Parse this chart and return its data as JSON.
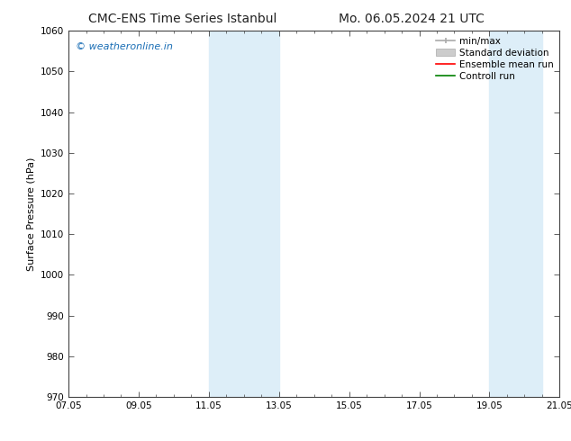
{
  "title": "CMC-ENS Time Series Istanbul",
  "title2": "Mo. 06.05.2024 21 UTC",
  "ylabel": "Surface Pressure (hPa)",
  "xlabel": "",
  "ylim": [
    970,
    1060
  ],
  "yticks": [
    970,
    980,
    990,
    1000,
    1010,
    1020,
    1030,
    1040,
    1050,
    1060
  ],
  "xtick_labels": [
    "07.05",
    "09.05",
    "11.05",
    "13.05",
    "15.05",
    "17.05",
    "19.05",
    "21.05"
  ],
  "xtick_positions": [
    0,
    2,
    4,
    6,
    8,
    10,
    12,
    14
  ],
  "x_min": 0,
  "x_max": 14,
  "shaded_bands": [
    {
      "x_start": 4,
      "x_end": 6
    },
    {
      "x_start": 12,
      "x_end": 13.5
    }
  ],
  "band_color": "#ddeef8",
  "watermark_text": "© weatheronline.in",
  "watermark_color": "#1a6eb5",
  "legend_labels": [
    "min/max",
    "Standard deviation",
    "Ensemble mean run",
    "Controll run"
  ],
  "legend_colors": [
    "#aaaaaa",
    "#cccccc",
    "red",
    "green"
  ],
  "bg_color": "#ffffff",
  "axes_bg_color": "#ffffff",
  "spine_color": "#444444",
  "title_fontsize": 10,
  "ylabel_fontsize": 8,
  "tick_fontsize": 7.5,
  "legend_fontsize": 7.5,
  "watermark_fontsize": 8
}
